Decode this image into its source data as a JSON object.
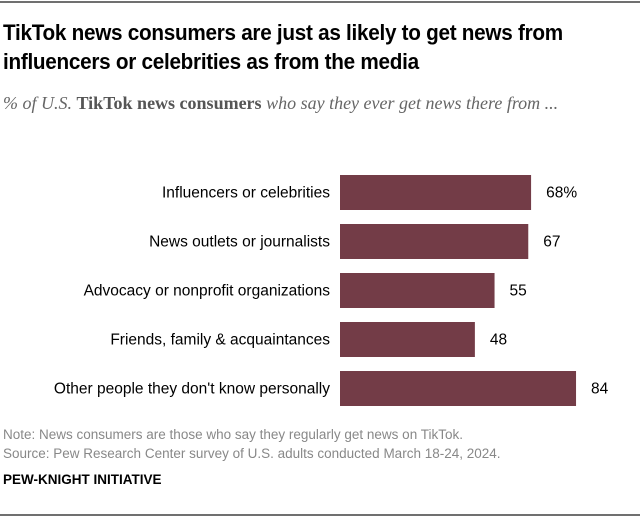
{
  "header": {
    "title": "TikTok news consumers are just as likely to get news from influencers or celebrities as from the media",
    "subtitle_prefix": "% of U.S. ",
    "subtitle_bold": "TikTok news consumers",
    "subtitle_suffix": " who say they ever get news there from ..."
  },
  "footer": {
    "note": "Note: News consumers are those who say they regularly get news on TikTok.",
    "source": "Source: Pew Research Center survey of U.S. adults conducted March 18-24, 2024.",
    "brand": "PEW-KNIGHT INITIATIVE"
  },
  "colors": {
    "bar": "#733C47",
    "rule": "#707070"
  },
  "chart_data": {
    "type": "bar",
    "orientation": "horizontal",
    "title": "TikTok news consumers are just as likely to get news from influencers or celebrities as from the media",
    "subtitle": "% of U.S. TikTok news consumers who say they ever get news there from ...",
    "categories": [
      "Influencers or celebrities",
      "News outlets or journalists",
      "Advocacy or nonprofit organizations",
      "Friends, family & acquaintances",
      "Other people they don't know personally"
    ],
    "values": [
      68,
      67,
      55,
      48,
      84
    ],
    "value_labels": [
      "68%",
      "67",
      "55",
      "48",
      "84"
    ],
    "xlabel": "",
    "ylabel": "",
    "xlim": [
      0,
      100
    ],
    "grid": false,
    "legend": "none"
  }
}
